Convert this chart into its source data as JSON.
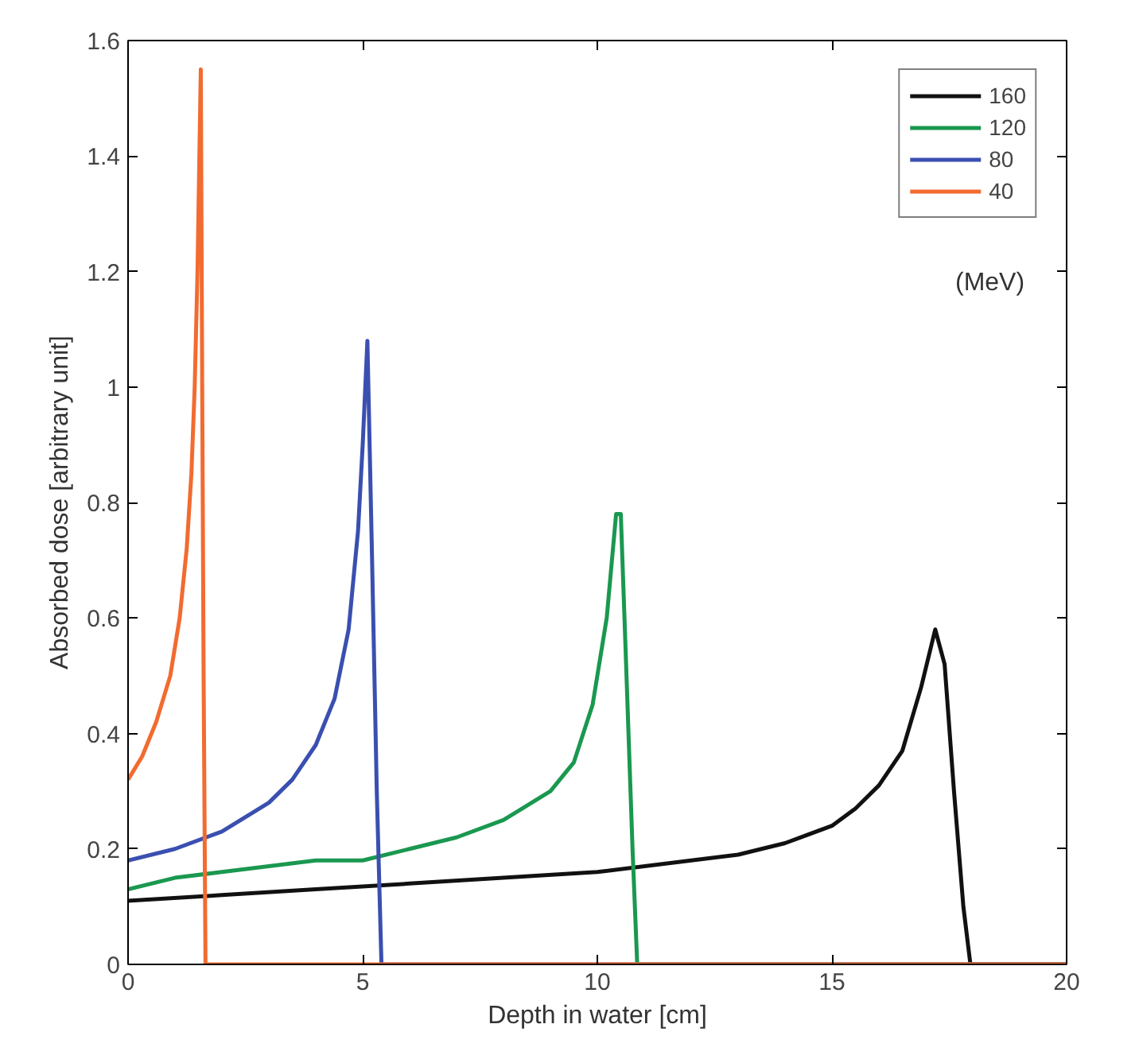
{
  "chart_data": {
    "type": "line",
    "xlabel": "Depth in water [cm]",
    "ylabel": "Absorbed dose [arbitrary unit]",
    "xlim": [
      0,
      20
    ],
    "xticks": [
      0,
      5,
      10,
      15,
      20
    ],
    "ylim": [
      0,
      1.6
    ],
    "yticks": [
      0,
      0.2,
      0.4,
      0.6,
      0.8,
      1,
      1.2,
      1.4,
      1.6
    ],
    "grid": false,
    "legend": "top right",
    "marker": "none",
    "line_style": "solid",
    "annotations": [
      "(MeV)"
    ],
    "series": [
      {
        "name": "160",
        "color": "#111111",
        "x": [
          0,
          2,
          4,
          6,
          8,
          10,
          12,
          13,
          14,
          15,
          15.5,
          16,
          16.5,
          16.9,
          17.2,
          17.4,
          17.6,
          17.8,
          17.95,
          20
        ],
        "values": [
          0.11,
          0.12,
          0.13,
          0.14,
          0.15,
          0.16,
          0.18,
          0.19,
          0.21,
          0.24,
          0.27,
          0.31,
          0.37,
          0.48,
          0.58,
          0.52,
          0.3,
          0.1,
          0,
          0
        ]
      },
      {
        "name": "120",
        "color": "#1a9850",
        "x": [
          0,
          1,
          2,
          3,
          4,
          5,
          6,
          7,
          8,
          9,
          9.5,
          9.9,
          10.2,
          10.4,
          10.5,
          10.6,
          10.75,
          10.85,
          20
        ],
        "values": [
          0.13,
          0.15,
          0.16,
          0.17,
          0.18,
          0.18,
          0.2,
          0.22,
          0.25,
          0.3,
          0.35,
          0.45,
          0.6,
          0.78,
          0.78,
          0.55,
          0.2,
          0,
          0
        ]
      },
      {
        "name": "80",
        "color": "#3a4fb0",
        "x": [
          0,
          1,
          2,
          3,
          3.5,
          4,
          4.4,
          4.7,
          4.9,
          5.0,
          5.1,
          5.2,
          5.3,
          5.4,
          20
        ],
        "values": [
          0.18,
          0.2,
          0.23,
          0.28,
          0.32,
          0.38,
          0.46,
          0.58,
          0.75,
          0.9,
          1.08,
          0.7,
          0.3,
          0,
          0
        ]
      },
      {
        "name": "40",
        "color": "#f26b30",
        "x": [
          0,
          0.3,
          0.6,
          0.9,
          1.1,
          1.25,
          1.35,
          1.42,
          1.48,
          1.52,
          1.55,
          1.58,
          1.61,
          1.65,
          20
        ],
        "values": [
          0.32,
          0.36,
          0.42,
          0.5,
          0.6,
          0.72,
          0.85,
          1.0,
          1.2,
          1.4,
          1.55,
          1.0,
          0.5,
          0,
          0
        ]
      }
    ]
  }
}
